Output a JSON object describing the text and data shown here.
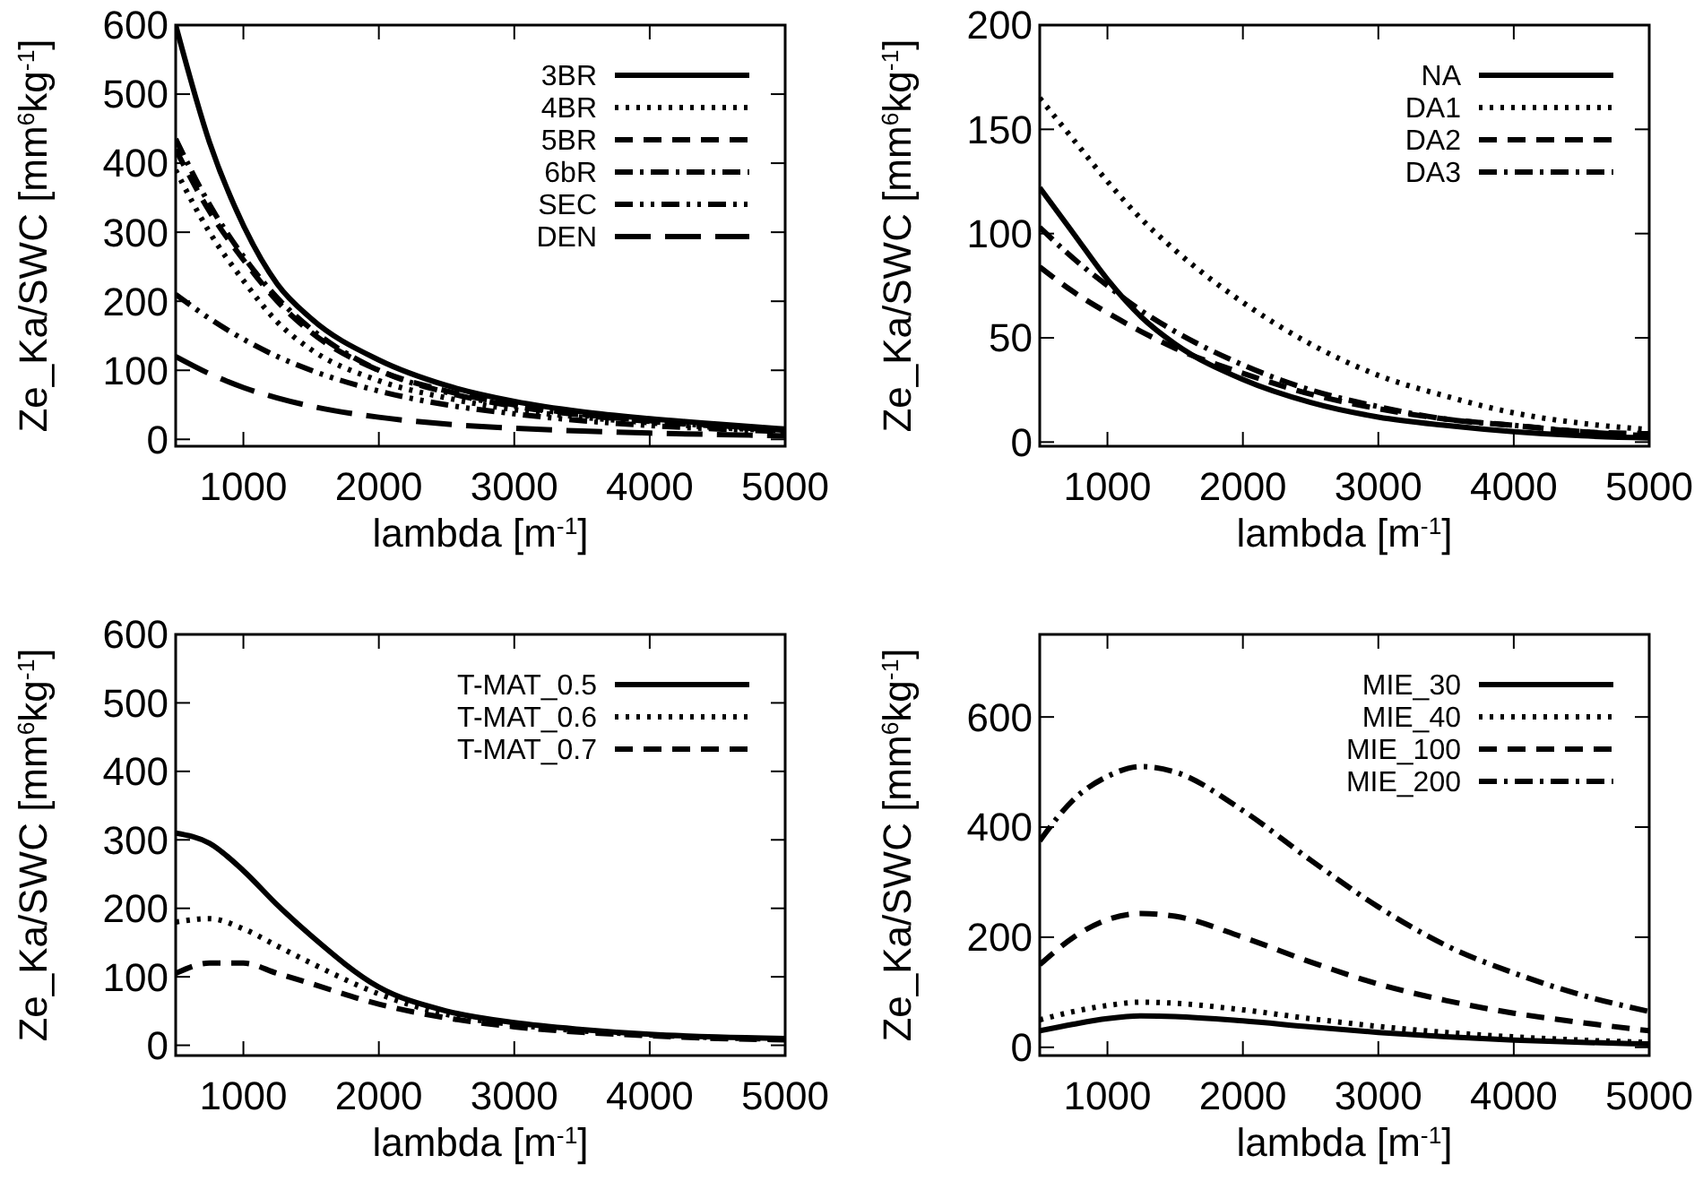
{
  "chart_data": [
    {
      "type": "line",
      "xlabel": "lambda [m$^{-1}$]",
      "ylabel": "Ze_Ka/SWC [mm$^{6}$kg$^{-1}$]",
      "xlim": [
        500,
        5000
      ],
      "xticks": [
        1000,
        2000,
        3000,
        4000,
        5000
      ],
      "ylim": [
        -10,
        600
      ],
      "yticks": [
        0,
        100,
        200,
        300,
        400,
        500,
        600
      ],
      "legend": "top right",
      "x": [
        500,
        750,
        1000,
        1250,
        1500,
        2000,
        2500,
        3000,
        3500,
        4000,
        4500,
        5000
      ],
      "series": [
        {
          "name": "3BR",
          "color": "#000000",
          "line_style": "solid",
          "values": [
            600,
            430,
            310,
            225,
            175,
            115,
            78,
            55,
            40,
            30,
            22,
            15
          ]
        },
        {
          "name": "4BR",
          "color": "#000000",
          "line_style": "dotted",
          "values": [
            390,
            300,
            230,
            170,
            130,
            85,
            60,
            43,
            32,
            24,
            17,
            12
          ]
        },
        {
          "name": "5BR",
          "color": "#000000",
          "line_style": "dashed",
          "values": [
            420,
            330,
            260,
            200,
            155,
            100,
            70,
            50,
            36,
            27,
            20,
            14
          ]
        },
        {
          "name": "6bR",
          "color": "#000000",
          "line_style": "dashdot",
          "values": [
            435,
            340,
            265,
            205,
            160,
            100,
            68,
            48,
            35,
            26,
            19,
            13
          ]
        },
        {
          "name": "SEC",
          "color": "#000000",
          "line_style": "dashdotdot",
          "values": [
            210,
            175,
            145,
            120,
            100,
            70,
            50,
            37,
            27,
            20,
            15,
            11
          ]
        },
        {
          "name": "DEN",
          "color": "#000000",
          "line_style": "longdash",
          "values": [
            120,
            95,
            75,
            60,
            48,
            32,
            22,
            16,
            12,
            9,
            7,
            5
          ]
        }
      ]
    },
    {
      "type": "line",
      "xlabel": "lambda [m$^{-1}$]",
      "ylabel": "Ze_Ka/SWC [mm$^{6}$kg$^{-1}$]",
      "xlim": [
        500,
        5000
      ],
      "xticks": [
        1000,
        2000,
        3000,
        4000,
        5000
      ],
      "ylim": [
        -2,
        200
      ],
      "yticks": [
        0,
        50,
        100,
        150,
        200
      ],
      "legend": "top right",
      "x": [
        500,
        750,
        1000,
        1250,
        1500,
        2000,
        2500,
        3000,
        3500,
        4000,
        4500,
        5000
      ],
      "series": [
        {
          "name": "NA",
          "color": "#000000",
          "line_style": "solid",
          "values": [
            122,
            100,
            78,
            60,
            47,
            30,
            19,
            12,
            8,
            5,
            3,
            2
          ]
        },
        {
          "name": "DA1",
          "color": "#000000",
          "line_style": "dotted",
          "values": [
            165,
            145,
            125,
            107,
            92,
            67,
            47,
            32,
            22,
            14,
            9,
            6
          ]
        },
        {
          "name": "DA2",
          "color": "#000000",
          "line_style": "dashed",
          "values": [
            84,
            72,
            62,
            53,
            45,
            33,
            23,
            16,
            11,
            8,
            5,
            4
          ]
        },
        {
          "name": "DA3",
          "color": "#000000",
          "line_style": "dashdot",
          "values": [
            103,
            88,
            75,
            63,
            53,
            37,
            25,
            17,
            11,
            8,
            5,
            3
          ]
        }
      ]
    },
    {
      "type": "line",
      "xlabel": "lambda [m$^{-1}$]",
      "ylabel": "Ze_Ka/SWC [mm$^{6}$kg$^{-1}$]",
      "xlim": [
        500,
        5000
      ],
      "xticks": [
        1000,
        2000,
        3000,
        4000,
        5000
      ],
      "ylim": [
        -15,
        600
      ],
      "yticks": [
        0,
        100,
        200,
        300,
        400,
        500,
        600
      ],
      "legend": "top right",
      "x": [
        500,
        750,
        1000,
        1250,
        1500,
        2000,
        2500,
        3000,
        3500,
        4000,
        4500,
        5000
      ],
      "series": [
        {
          "name": "T-MAT_0.5",
          "color": "#000000",
          "line_style": "solid",
          "values": [
            310,
            295,
            255,
            205,
            160,
            85,
            50,
            33,
            23,
            16,
            12,
            10
          ]
        },
        {
          "name": "T-MAT_0.6",
          "color": "#000000",
          "line_style": "dotted",
          "values": [
            180,
            185,
            170,
            145,
            120,
            75,
            45,
            30,
            21,
            15,
            11,
            9
          ]
        },
        {
          "name": "T-MAT_0.7",
          "color": "#000000",
          "line_style": "dashed",
          "values": [
            105,
            120,
            120,
            105,
            90,
            60,
            40,
            27,
            19,
            14,
            10,
            8
          ]
        }
      ]
    },
    {
      "type": "line",
      "xlabel": "lambda [m$^{-1}$]",
      "ylabel": "Ze_Ka/SWC [mm$^{6}$kg$^{-1}$]",
      "xlim": [
        500,
        5000
      ],
      "xticks": [
        1000,
        2000,
        3000,
        4000,
        5000
      ],
      "ylim": [
        -15,
        750
      ],
      "yticks": [
        0,
        200,
        400,
        600
      ],
      "legend": "top right",
      "x": [
        500,
        750,
        1000,
        1250,
        1500,
        2000,
        2500,
        3000,
        3500,
        4000,
        4500,
        5000
      ],
      "series": [
        {
          "name": "MIE_30",
          "color": "#000000",
          "line_style": "solid",
          "values": [
            30,
            42,
            52,
            57,
            56,
            48,
            37,
            27,
            19,
            13,
            9,
            6
          ]
        },
        {
          "name": "MIE_40",
          "color": "#000000",
          "line_style": "dotted",
          "values": [
            50,
            65,
            76,
            82,
            80,
            68,
            52,
            38,
            27,
            19,
            13,
            9
          ]
        },
        {
          "name": "MIE_100",
          "color": "#000000",
          "line_style": "dashed",
          "values": [
            150,
            200,
            232,
            243,
            238,
            200,
            155,
            115,
            85,
            62,
            45,
            30
          ]
        },
        {
          "name": "MIE_200",
          "color": "#000000",
          "line_style": "dashdot",
          "values": [
            375,
            450,
            492,
            510,
            500,
            430,
            340,
            255,
            185,
            135,
            95,
            65
          ]
        }
      ]
    }
  ]
}
